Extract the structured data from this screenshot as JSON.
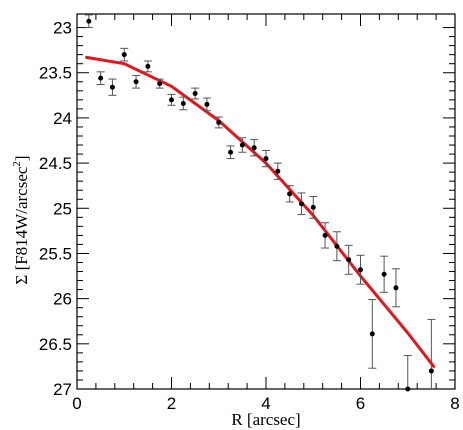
{
  "chart_data": {
    "type": "scatter",
    "xlabel": "R [arcsec]",
    "ylabel": {
      "prefix": "Σ [F814W/arcsec",
      "superscript": "2",
      "suffix": "]"
    },
    "xlim": [
      0,
      8
    ],
    "ylim": [
      22.85,
      27.0
    ],
    "y_inverted": true,
    "x_ticks": [
      0,
      2,
      4,
      6,
      8
    ],
    "x_tick_labels": [
      "0",
      "2",
      "4",
      "6",
      "8"
    ],
    "y_ticks": [
      23,
      23.5,
      24,
      24.5,
      25,
      25.5,
      26,
      26.5,
      27
    ],
    "y_tick_labels": [
      "23",
      "23.5",
      "24",
      "24.5",
      "25",
      "25.5",
      "26",
      "26.5",
      "27"
    ],
    "grid": false,
    "series": [
      {
        "type": "scatter_errorbar",
        "color": "#000000",
        "points": [
          {
            "x": 0.25,
            "y": 22.93,
            "err": 0.07
          },
          {
            "x": 0.5,
            "y": 23.56,
            "err": 0.07
          },
          {
            "x": 0.75,
            "y": 23.66,
            "err": 0.09
          },
          {
            "x": 1.0,
            "y": 23.3,
            "err": 0.07
          },
          {
            "x": 1.25,
            "y": 23.6,
            "err": 0.07
          },
          {
            "x": 1.5,
            "y": 23.43,
            "err": 0.06
          },
          {
            "x": 1.75,
            "y": 23.62,
            "err": 0.05
          },
          {
            "x": 2.0,
            "y": 23.8,
            "err": 0.06
          },
          {
            "x": 2.25,
            "y": 23.84,
            "err": 0.07
          },
          {
            "x": 2.5,
            "y": 23.73,
            "err": 0.06
          },
          {
            "x": 2.75,
            "y": 23.85,
            "err": 0.07
          },
          {
            "x": 3.0,
            "y": 24.05,
            "err": 0.06
          },
          {
            "x": 3.25,
            "y": 24.38,
            "err": 0.07
          },
          {
            "x": 3.5,
            "y": 24.3,
            "err": 0.08
          },
          {
            "x": 3.75,
            "y": 24.33,
            "err": 0.09
          },
          {
            "x": 4.0,
            "y": 24.45,
            "err": 0.09
          },
          {
            "x": 4.25,
            "y": 24.59,
            "err": 0.09
          },
          {
            "x": 4.5,
            "y": 24.84,
            "err": 0.09
          },
          {
            "x": 4.75,
            "y": 24.95,
            "err": 0.12
          },
          {
            "x": 5.0,
            "y": 24.99,
            "err": 0.12
          },
          {
            "x": 5.25,
            "y": 25.3,
            "err": 0.14
          },
          {
            "x": 5.5,
            "y": 25.42,
            "err": 0.16
          },
          {
            "x": 5.75,
            "y": 25.57,
            "err": 0.16
          },
          {
            "x": 6.0,
            "y": 25.68,
            "err": 0.16
          },
          {
            "x": 6.25,
            "y": 26.39,
            "err": 0.38
          },
          {
            "x": 6.5,
            "y": 25.73,
            "err": 0.2
          },
          {
            "x": 6.75,
            "y": 25.88,
            "err": 0.21
          },
          {
            "x": 7.0,
            "y": 27.0,
            "err": 0.37
          },
          {
            "x": 7.5,
            "y": 26.8,
            "err": 0.57
          }
        ]
      },
      {
        "type": "line",
        "color": "#e8141a",
        "points": [
          {
            "x": 0.2,
            "y": 23.33
          },
          {
            "x": 1.0,
            "y": 23.4
          },
          {
            "x": 2.0,
            "y": 23.65
          },
          {
            "x": 3.0,
            "y": 24.03
          },
          {
            "x": 4.0,
            "y": 24.5
          },
          {
            "x": 5.0,
            "y": 25.08
          },
          {
            "x": 6.0,
            "y": 25.75
          },
          {
            "x": 7.0,
            "y": 26.38
          },
          {
            "x": 7.55,
            "y": 26.75
          }
        ]
      }
    ]
  }
}
